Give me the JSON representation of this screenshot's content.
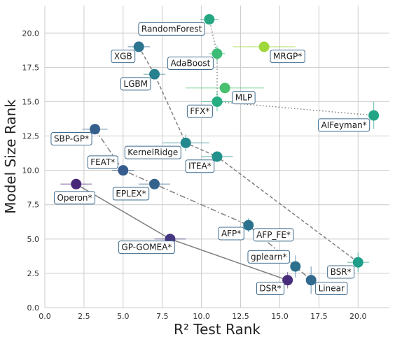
{
  "chart_data": {
    "type": "scatter",
    "title": "",
    "xlabel": "R² Test Rank",
    "ylabel": "Model Size Rank",
    "xlim": [
      0,
      22
    ],
    "ylim": [
      0,
      22
    ],
    "xticks": [
      0.0,
      2.5,
      5.0,
      7.5,
      10.0,
      12.5,
      15.0,
      17.5,
      20.0
    ],
    "yticks": [
      0.0,
      2.5,
      5.0,
      7.5,
      10.0,
      12.5,
      15.0,
      17.5,
      20.0
    ],
    "xtick_labels": [
      "0.0",
      "2.5",
      "5.0",
      "7.5",
      "10.0",
      "12.5",
      "15.0",
      "17.5",
      "20.0"
    ],
    "ytick_labels": [
      "0.0",
      "2.5",
      "5.0",
      "7.5",
      "10.0",
      "12.5",
      "15.0",
      "17.5",
      "20.0"
    ],
    "grid": true,
    "points": [
      {
        "label": "RandomForest",
        "x": 10.5,
        "y": 21.0,
        "xerr": 0.6,
        "yerr": 0.0,
        "color": "#26a783"
      },
      {
        "label": "XGB",
        "x": 6.0,
        "y": 19.0,
        "xerr": 0.7,
        "yerr": 0.0,
        "color": "#2b7590"
      },
      {
        "label": "MRGP*",
        "x": 14.0,
        "y": 19.0,
        "xerr": 2.0,
        "yerr": 0.0,
        "color": "#9fd83c"
      },
      {
        "label": "AdaBoost",
        "x": 11.0,
        "y": 18.5,
        "xerr": 0.5,
        "yerr": 0.6,
        "color": "#3cbc76"
      },
      {
        "label": "LGBM",
        "x": 7.0,
        "y": 17.0,
        "xerr": 0.7,
        "yerr": 0.0,
        "color": "#27808e"
      },
      {
        "label": "",
        "x": 11.5,
        "y": 16.0,
        "xerr": 2.5,
        "yerr": 0.0,
        "color": "#48c06e"
      },
      {
        "label": "MLP",
        "x": 11.0,
        "y": 15.0,
        "xerr": 1.0,
        "yerr": 0.7,
        "color": "#26ad81"
      },
      {
        "label": "AIFeyman*",
        "x": 21.0,
        "y": 14.0,
        "xerr": 0.0,
        "yerr": 1.0,
        "color": "#21a585"
      },
      {
        "label": "SBP-GP*",
        "x": 3.2,
        "y": 13.0,
        "xerr": 0.8,
        "yerr": 0.0,
        "color": "#355f8d"
      },
      {
        "label": "FFX*",
        "x": 9.0,
        "y": 12.0,
        "xerr": 1.5,
        "yerr": 0.6,
        "color": "#23888e"
      },
      {
        "label": "ITEA*",
        "x": 11.0,
        "y": 11.0,
        "xerr": 1.0,
        "yerr": 0.0,
        "color": "#21918c"
      },
      {
        "label": "KernelRidge",
        "x": 5.0,
        "y": 10.0,
        "xerr": 0.7,
        "yerr": 0.0,
        "color": "#365c8d"
      },
      {
        "label": "EPLEX*",
        "x": 7.0,
        "y": 9.0,
        "xerr": 1.0,
        "yerr": 0.0,
        "color": "#33638d"
      },
      {
        "label": "Operon*",
        "x": 2.0,
        "y": 9.0,
        "xerr": 1.0,
        "yerr": 0.0,
        "color": "#482878"
      },
      {
        "label": "AFP*",
        "x": 13.0,
        "y": 6.0,
        "xerr": 0.0,
        "yerr": 0.5,
        "color": "#2c728e"
      },
      {
        "label": "GP-GOMEA*",
        "x": 8.0,
        "y": 5.0,
        "xerr": 1.0,
        "yerr": 0.0,
        "color": "#453781"
      },
      {
        "label": "BSR*",
        "x": 20.0,
        "y": 3.3,
        "xerr": 0.7,
        "yerr": 0.7,
        "color": "#1f9e89"
      },
      {
        "label": "gplearn*",
        "x": 16.0,
        "y": 3.0,
        "xerr": 0.0,
        "yerr": 0.8,
        "color": "#2d708e"
      },
      {
        "label": "Linear",
        "x": 17.0,
        "y": 2.0,
        "xerr": 0.0,
        "yerr": 1.0,
        "color": "#31688e"
      },
      {
        "label": "DSR*",
        "x": 15.5,
        "y": 2.0,
        "xerr": 0.0,
        "yerr": 0.6,
        "color": "#472d7b"
      }
    ],
    "frontier_lines": [
      {
        "style": "dotted",
        "points": [
          [
            10.5,
            21.0
          ],
          [
            11.0,
            18.5
          ],
          [
            11.0,
            15.0
          ],
          [
            21.0,
            14.0
          ]
        ]
      },
      {
        "style": "dashed",
        "points": [
          [
            6.0,
            19.0
          ],
          [
            7.0,
            17.0
          ],
          [
            9.0,
            12.0
          ],
          [
            11.0,
            11.0
          ],
          [
            20.0,
            3.3
          ]
        ]
      },
      {
        "style": "dashdot",
        "points": [
          [
            3.2,
            13.0
          ],
          [
            5.0,
            10.0
          ],
          [
            7.0,
            9.0
          ],
          [
            13.0,
            6.0
          ],
          [
            16.0,
            3.0
          ],
          [
            17.0,
            2.0
          ]
        ]
      },
      {
        "style": "solid",
        "points": [
          [
            2.0,
            9.0
          ],
          [
            8.0,
            5.0
          ],
          [
            15.5,
            2.0
          ]
        ]
      }
    ],
    "label_boxes": [
      {
        "text": "RandomForest",
        "x": 8.1,
        "y": 20.3
      },
      {
        "text": "XGB",
        "x": 5.0,
        "y": 18.3
      },
      {
        "text": "MRGP*",
        "x": 15.5,
        "y": 18.3
      },
      {
        "text": "AdaBoost",
        "x": 9.3,
        "y": 17.8
      },
      {
        "text": "LGBM",
        "x": 5.8,
        "y": 16.3
      },
      {
        "text": "MLP",
        "x": 12.7,
        "y": 15.3
      },
      {
        "text": "AIFeyman*",
        "x": 19.1,
        "y": 13.3
      },
      {
        "text": "SBP-GP*",
        "x": 1.7,
        "y": 12.3
      },
      {
        "text": "FFX*",
        "x": 9.9,
        "y": 14.3
      },
      {
        "text": "KernelRidge",
        "x": 6.9,
        "y": 11.3
      },
      {
        "text": "FEAT*",
        "x": 3.7,
        "y": 10.6
      },
      {
        "text": "ITEA*",
        "x": 9.9,
        "y": 10.3
      },
      {
        "text": "EPLEX*",
        "x": 5.5,
        "y": 8.3
      },
      {
        "text": "Operon*",
        "x": 1.9,
        "y": 8.0
      },
      {
        "text": "AFP*",
        "x": 11.9,
        "y": 5.4
      },
      {
        "text": "AFP_FE*",
        "x": 14.6,
        "y": 5.3
      },
      {
        "text": "GP-GOMEA*",
        "x": 6.5,
        "y": 4.4
      },
      {
        "text": "gplearn*",
        "x": 14.3,
        "y": 3.7
      },
      {
        "text": "BSR*",
        "x": 18.9,
        "y": 2.6
      },
      {
        "text": "DSR*",
        "x": 14.4,
        "y": 1.4
      },
      {
        "text": "Linear",
        "x": 18.3,
        "y": 1.4
      }
    ]
  }
}
